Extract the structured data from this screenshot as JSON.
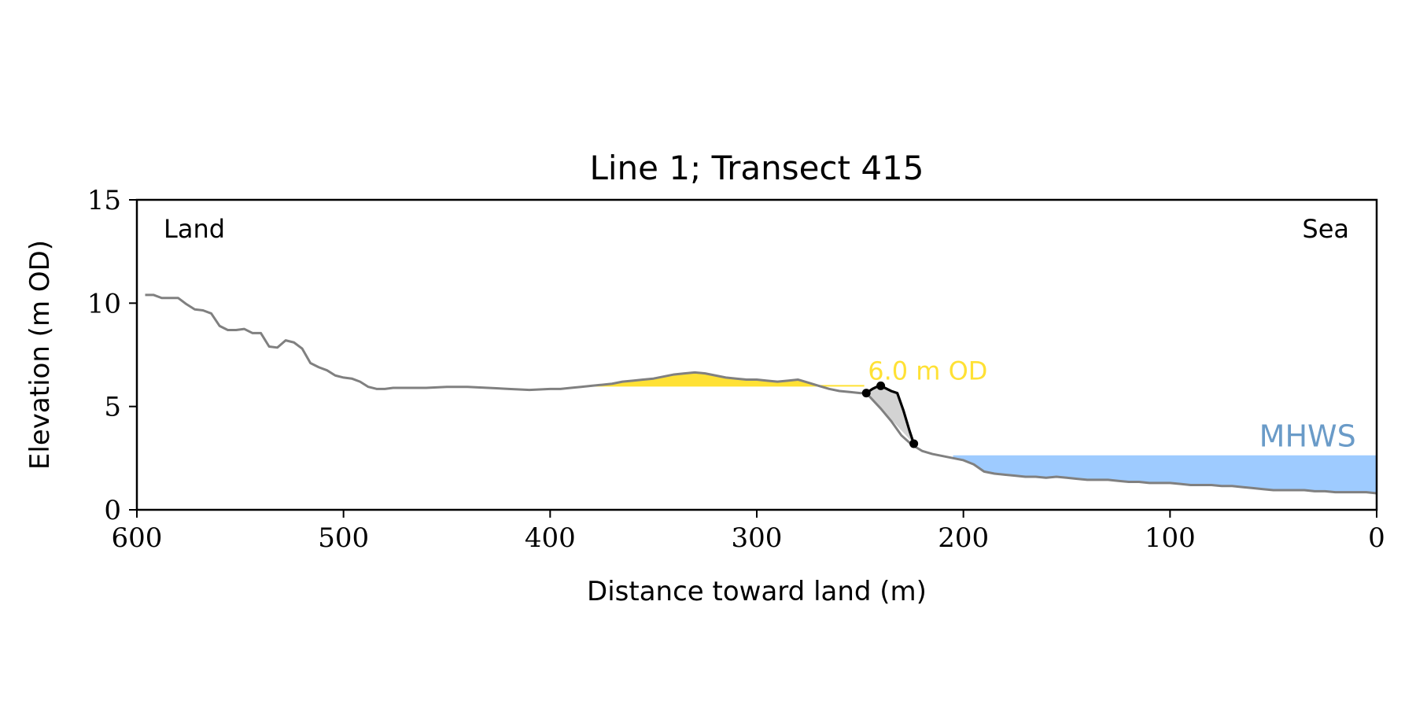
{
  "chart_data": {
    "type": "line",
    "title": "Line 1; Transect 415",
    "xlabel": "Distance toward land (m)",
    "ylabel": "Elevation (m OD)",
    "xlim": [
      600,
      0
    ],
    "ylim": [
      0,
      15
    ],
    "xticks": [
      "600",
      "500",
      "400",
      "300",
      "200",
      "100",
      "0"
    ],
    "yticks": [
      "0",
      "5",
      "10",
      "15"
    ],
    "grid": false,
    "corner_labels": {
      "left": "Land",
      "right": "Sea"
    },
    "reference_lines": [
      {
        "label": "6.0 m OD",
        "elevation": 6.0,
        "color": "#FFE135",
        "fill_from": 381,
        "fill_to": 248
      },
      {
        "label": "MHWS",
        "elevation": 2.6,
        "color": "#9ECBFF",
        "label_color": "#6A9BC8",
        "fill_from": 205,
        "fill_to": 0
      }
    ],
    "series": [
      {
        "color": "#808080",
        "x": [
          596,
          592,
          588,
          584,
          580,
          576,
          572,
          568,
          564,
          560,
          556,
          552,
          548,
          544,
          540,
          536,
          532,
          528,
          524,
          520,
          516,
          512,
          508,
          504,
          500,
          496,
          492,
          488,
          484,
          480,
          476,
          470,
          460,
          450,
          440,
          430,
          420,
          410,
          400,
          395,
          390,
          385,
          380,
          375,
          370,
          365,
          360,
          355,
          350,
          345,
          340,
          335,
          330,
          325,
          320,
          315,
          310,
          305,
          300,
          295,
          290,
          285,
          280,
          275,
          270,
          265,
          260,
          255,
          250,
          247,
          240,
          235,
          230,
          225,
          220,
          215,
          210,
          205,
          200,
          195,
          190,
          185,
          180,
          175,
          170,
          165,
          160,
          155,
          150,
          145,
          140,
          135,
          130,
          125,
          120,
          115,
          110,
          105,
          100,
          95,
          90,
          85,
          80,
          75,
          70,
          65,
          60,
          55,
          50,
          45,
          40,
          35,
          30,
          25,
          20,
          15,
          10,
          5,
          0
        ],
        "y": [
          10.4,
          10.4,
          10.25,
          10.25,
          10.25,
          9.95,
          9.7,
          9.65,
          9.5,
          8.9,
          8.7,
          8.7,
          8.75,
          8.55,
          8.55,
          7.9,
          7.85,
          8.2,
          8.1,
          7.8,
          7.1,
          6.9,
          6.75,
          6.5,
          6.4,
          6.35,
          6.2,
          5.95,
          5.85,
          5.85,
          5.9,
          5.9,
          5.9,
          5.95,
          5.95,
          5.9,
          5.85,
          5.8,
          5.85,
          5.85,
          5.9,
          5.95,
          6.0,
          6.05,
          6.1,
          6.2,
          6.25,
          6.3,
          6.35,
          6.45,
          6.55,
          6.6,
          6.65,
          6.6,
          6.5,
          6.4,
          6.35,
          6.3,
          6.3,
          6.25,
          6.2,
          6.25,
          6.3,
          6.15,
          6.0,
          5.85,
          5.75,
          5.7,
          5.65,
          5.65,
          4.9,
          4.3,
          3.6,
          3.15,
          2.85,
          2.7,
          2.6,
          2.5,
          2.4,
          2.2,
          1.85,
          1.75,
          1.7,
          1.65,
          1.6,
          1.6,
          1.55,
          1.6,
          1.55,
          1.5,
          1.45,
          1.45,
          1.45,
          1.4,
          1.35,
          1.35,
          1.3,
          1.3,
          1.3,
          1.25,
          1.2,
          1.2,
          1.2,
          1.15,
          1.15,
          1.1,
          1.05,
          1.0,
          0.95,
          0.95,
          0.95,
          0.95,
          0.9,
          0.9,
          0.85,
          0.85,
          0.85,
          0.85,
          0.8
        ]
      },
      {
        "color": "#000000",
        "x": [
          247,
          244,
          241,
          238,
          235,
          232,
          229,
          226,
          224
        ],
        "y": [
          5.65,
          5.85,
          6.0,
          5.9,
          5.75,
          5.65,
          4.8,
          3.8,
          3.2
        ]
      }
    ],
    "markers": [
      {
        "x": 247,
        "y": 5.65
      },
      {
        "x": 240,
        "y": 6.0
      },
      {
        "x": 224,
        "y": 3.2
      }
    ],
    "shaded_region": {
      "color": "#D3D3D3",
      "x": [
        247,
        244,
        241,
        238,
        235,
        232,
        229,
        226,
        224
      ],
      "y": [
        5.65,
        5.85,
        6.0,
        5.9,
        5.75,
        5.65,
        4.8,
        3.8,
        3.2
      ]
    }
  }
}
